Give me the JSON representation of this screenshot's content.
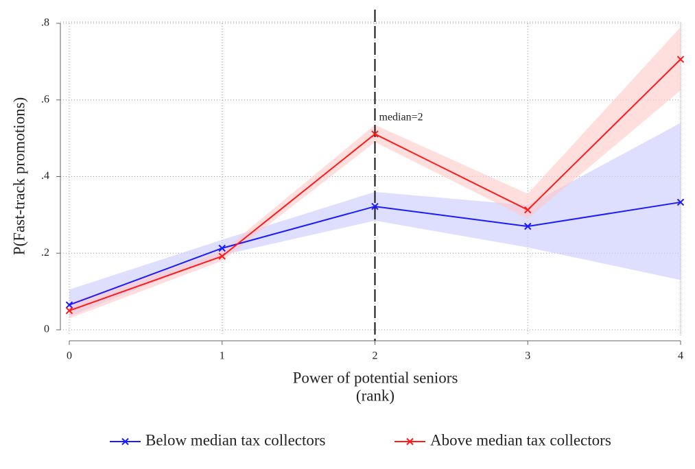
{
  "chart_data": {
    "type": "line",
    "xlabel": [
      "Power of potential seniors",
      "(rank)"
    ],
    "ylabel": "P(Fast-track promotions)",
    "x": [
      0,
      1,
      2,
      3,
      4
    ],
    "series": [
      {
        "name": "Below median tax collectors",
        "color": "#1a1aff",
        "band_color": "#c8c8ff",
        "values": [
          0.065,
          0.213,
          0.322,
          0.27,
          0.333
        ],
        "lower": [
          0.035,
          0.195,
          0.285,
          0.215,
          0.13
        ],
        "upper": [
          0.105,
          0.235,
          0.36,
          0.325,
          0.54
        ]
      },
      {
        "name": "Above median tax collectors",
        "color": "#ff1a1a",
        "band_color": "#ffc8c8",
        "values": [
          0.05,
          0.192,
          0.511,
          0.313,
          0.706
        ],
        "lower": [
          0.03,
          0.18,
          0.49,
          0.29,
          0.625
        ],
        "upper": [
          0.07,
          0.205,
          0.535,
          0.355,
          0.79
        ]
      }
    ],
    "vline": {
      "x": 2,
      "label": "median=2"
    },
    "xlim": [
      0,
      4
    ],
    "xticks": [
      0,
      1,
      2,
      3,
      4
    ],
    "ylim": [
      0,
      0.8
    ],
    "yticks": [
      0,
      {
        "value": 0.2,
        "label": ".2"
      },
      {
        "value": 0.4,
        "label": ".4"
      },
      {
        "value": 0.6,
        "label": ".6"
      },
      {
        "value": 0.8,
        "label": ".8"
      }
    ],
    "grid": true,
    "legend": "bottom"
  }
}
